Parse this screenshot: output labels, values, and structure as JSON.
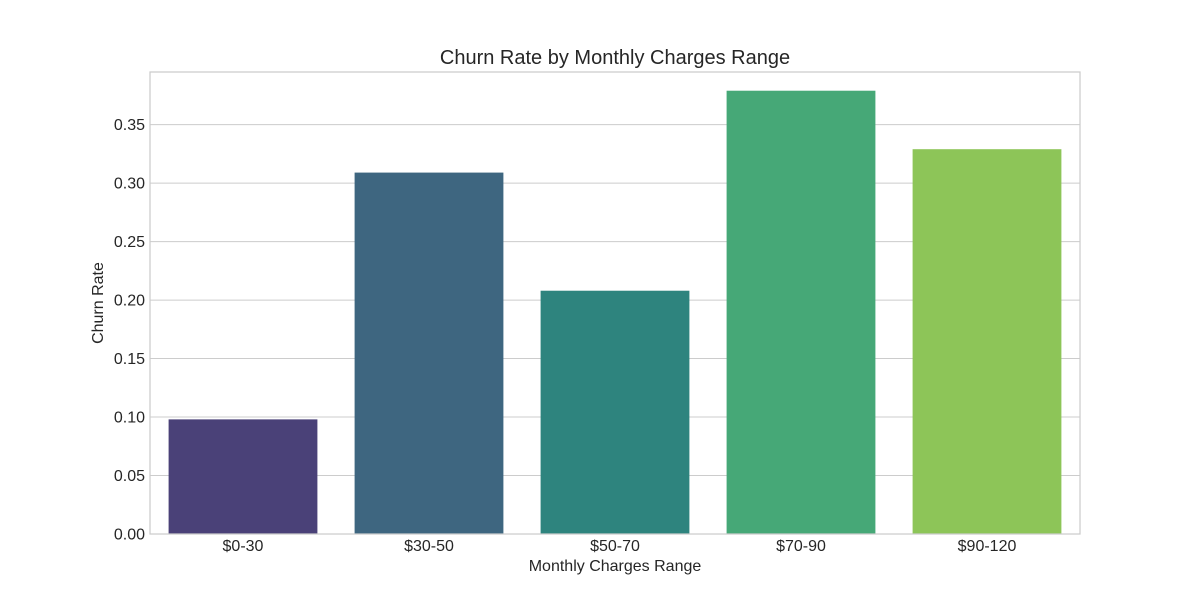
{
  "chart_data": {
    "type": "bar",
    "title": "Churn Rate by Monthly Charges Range",
    "xlabel": "Monthly Charges Range",
    "ylabel": "Churn Rate",
    "categories": [
      "$0-30",
      "$30-50",
      "$50-70",
      "$70-90",
      "$90-120"
    ],
    "values": [
      0.098,
      0.309,
      0.208,
      0.379,
      0.329
    ],
    "colors": [
      "#4a4178",
      "#3e6680",
      "#2e847e",
      "#46a877",
      "#8dc558"
    ],
    "ylim": [
      0,
      0.395
    ],
    "yticks": [
      0.0,
      0.05,
      0.1,
      0.15,
      0.2,
      0.25,
      0.3,
      0.35
    ],
    "ytick_labels": [
      "0.00",
      "0.05",
      "0.10",
      "0.15",
      "0.20",
      "0.25",
      "0.30",
      "0.35"
    ],
    "grid": "horizontal",
    "legend": "none"
  }
}
